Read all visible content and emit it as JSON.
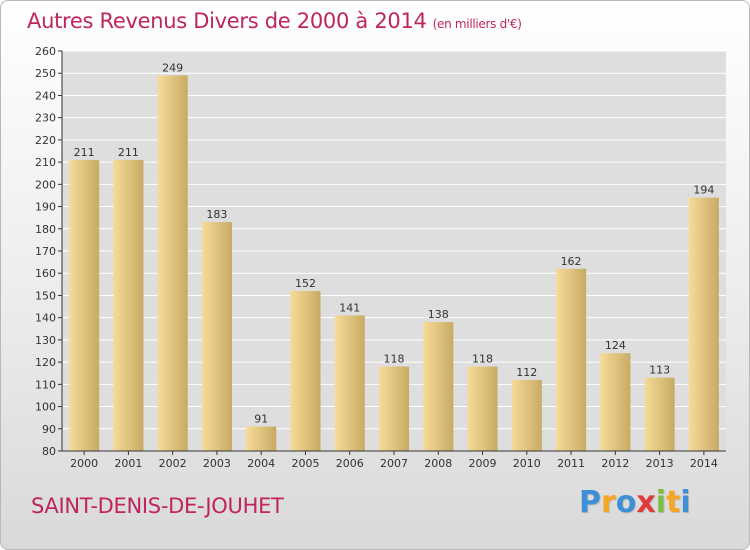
{
  "title": "Autres Revenus Divers de 2000 à 2014",
  "unit": "(en milliers d'€)",
  "commune": "SAINT-DENIS-DE-JOUHET",
  "logo": {
    "letters": [
      "P",
      "r",
      "o",
      "x",
      "i",
      "t",
      "i"
    ],
    "colors": [
      "#3e8fd6",
      "#f5a623",
      "#3e8fd6",
      "#e03a3a",
      "#7ac143",
      "#f5a623",
      "#3e8fd6"
    ]
  },
  "colors": {
    "bar_light": "#f6dc98",
    "bar_dark": "#c8aa64",
    "title": "#c0245e",
    "grid": "#ffffff",
    "axis": "#333333"
  },
  "chart_data": {
    "type": "bar",
    "categories": [
      "2000",
      "2001",
      "2002",
      "2003",
      "2004",
      "2005",
      "2006",
      "2007",
      "2008",
      "2009",
      "2010",
      "2011",
      "2012",
      "2013",
      "2014"
    ],
    "values": [
      211,
      211,
      249,
      183,
      91,
      152,
      141,
      118,
      138,
      118,
      112,
      162,
      124,
      113,
      194
    ],
    "value_labels": [
      "211",
      "211",
      "249",
      "183",
      "91",
      "152",
      "141",
      "118",
      "138",
      "118",
      "112",
      "162",
      "124",
      "113",
      "194"
    ],
    "yticks": [
      "80",
      "90",
      "100",
      "110",
      "120",
      "130",
      "140",
      "150",
      "160",
      "170",
      "180",
      "190",
      "200",
      "210",
      "220",
      "230",
      "240",
      "250",
      "260"
    ],
    "ylim": [
      80,
      260
    ],
    "grid": true
  }
}
